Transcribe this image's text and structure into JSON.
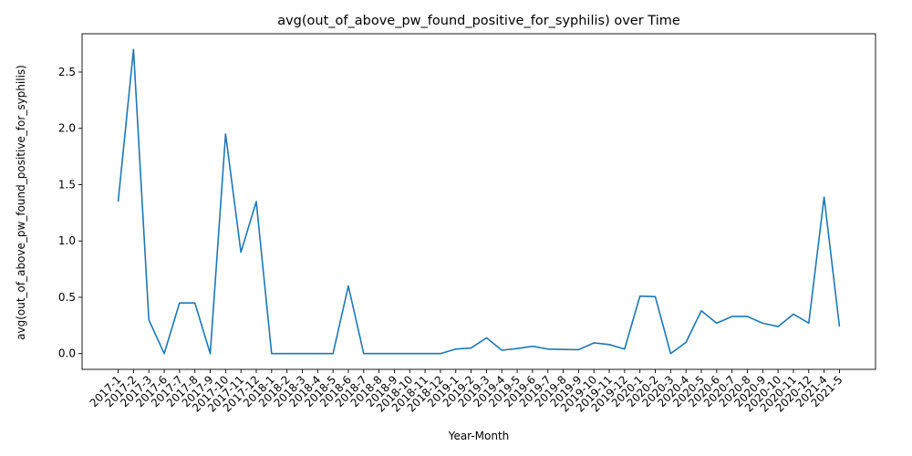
{
  "chart_data": {
    "type": "line",
    "title": "avg(out_of_above_pw_found_positive_for_syphilis) over Time",
    "xlabel": "Year-Month",
    "ylabel": "avg(out_of_above_pw_found_positive_for_syphilis)",
    "ylim": [
      -0.14,
      2.84
    ],
    "yticks": [
      0.0,
      0.5,
      1.0,
      1.5,
      2.0,
      2.5
    ],
    "ytick_labels": [
      "0.0",
      "0.5",
      "1.0",
      "1.5",
      "2.0",
      "2.5"
    ],
    "grid": false,
    "legend": "none",
    "series_color": "#1f77b4",
    "categories": [
      "2017-1",
      "2017-2",
      "2017-3",
      "2017-6",
      "2017-7",
      "2017-8",
      "2017-9",
      "2017-10",
      "2017-11",
      "2017-12",
      "2018-1",
      "2018-2",
      "2018-3",
      "2018-4",
      "2018-5",
      "2018-6",
      "2018-7",
      "2018-8",
      "2018-9",
      "2018-10",
      "2018-11",
      "2018-12",
      "2019-1",
      "2019-2",
      "2019-3",
      "2019-4",
      "2019-5",
      "2019-6",
      "2019-7",
      "2019-8",
      "2019-9",
      "2019-10",
      "2019-11",
      "2019-12",
      "2020-1",
      "2020-2",
      "2020-3",
      "2020-4",
      "2020-5",
      "2020-6",
      "2020-7",
      "2020-8",
      "2020-9",
      "2020-10",
      "2020-11",
      "2020-12",
      "2021-4",
      "2021-5"
    ],
    "values": [
      1.35,
      2.7,
      0.3,
      0.0,
      0.45,
      0.45,
      0.0,
      1.95,
      0.9,
      1.35,
      0.0,
      0.0,
      0.0,
      0.0,
      0.0,
      0.6,
      0.0,
      0.0,
      0.0,
      0.0,
      0.0,
      0.0,
      0.04,
      0.05,
      0.14,
      0.03,
      0.045,
      0.065,
      0.04,
      0.037,
      0.035,
      0.095,
      0.08,
      0.04,
      0.51,
      0.505,
      0.0,
      0.1,
      0.38,
      0.27,
      0.33,
      0.33,
      0.27,
      0.24,
      0.35,
      0.27,
      1.39,
      0.24
    ]
  }
}
